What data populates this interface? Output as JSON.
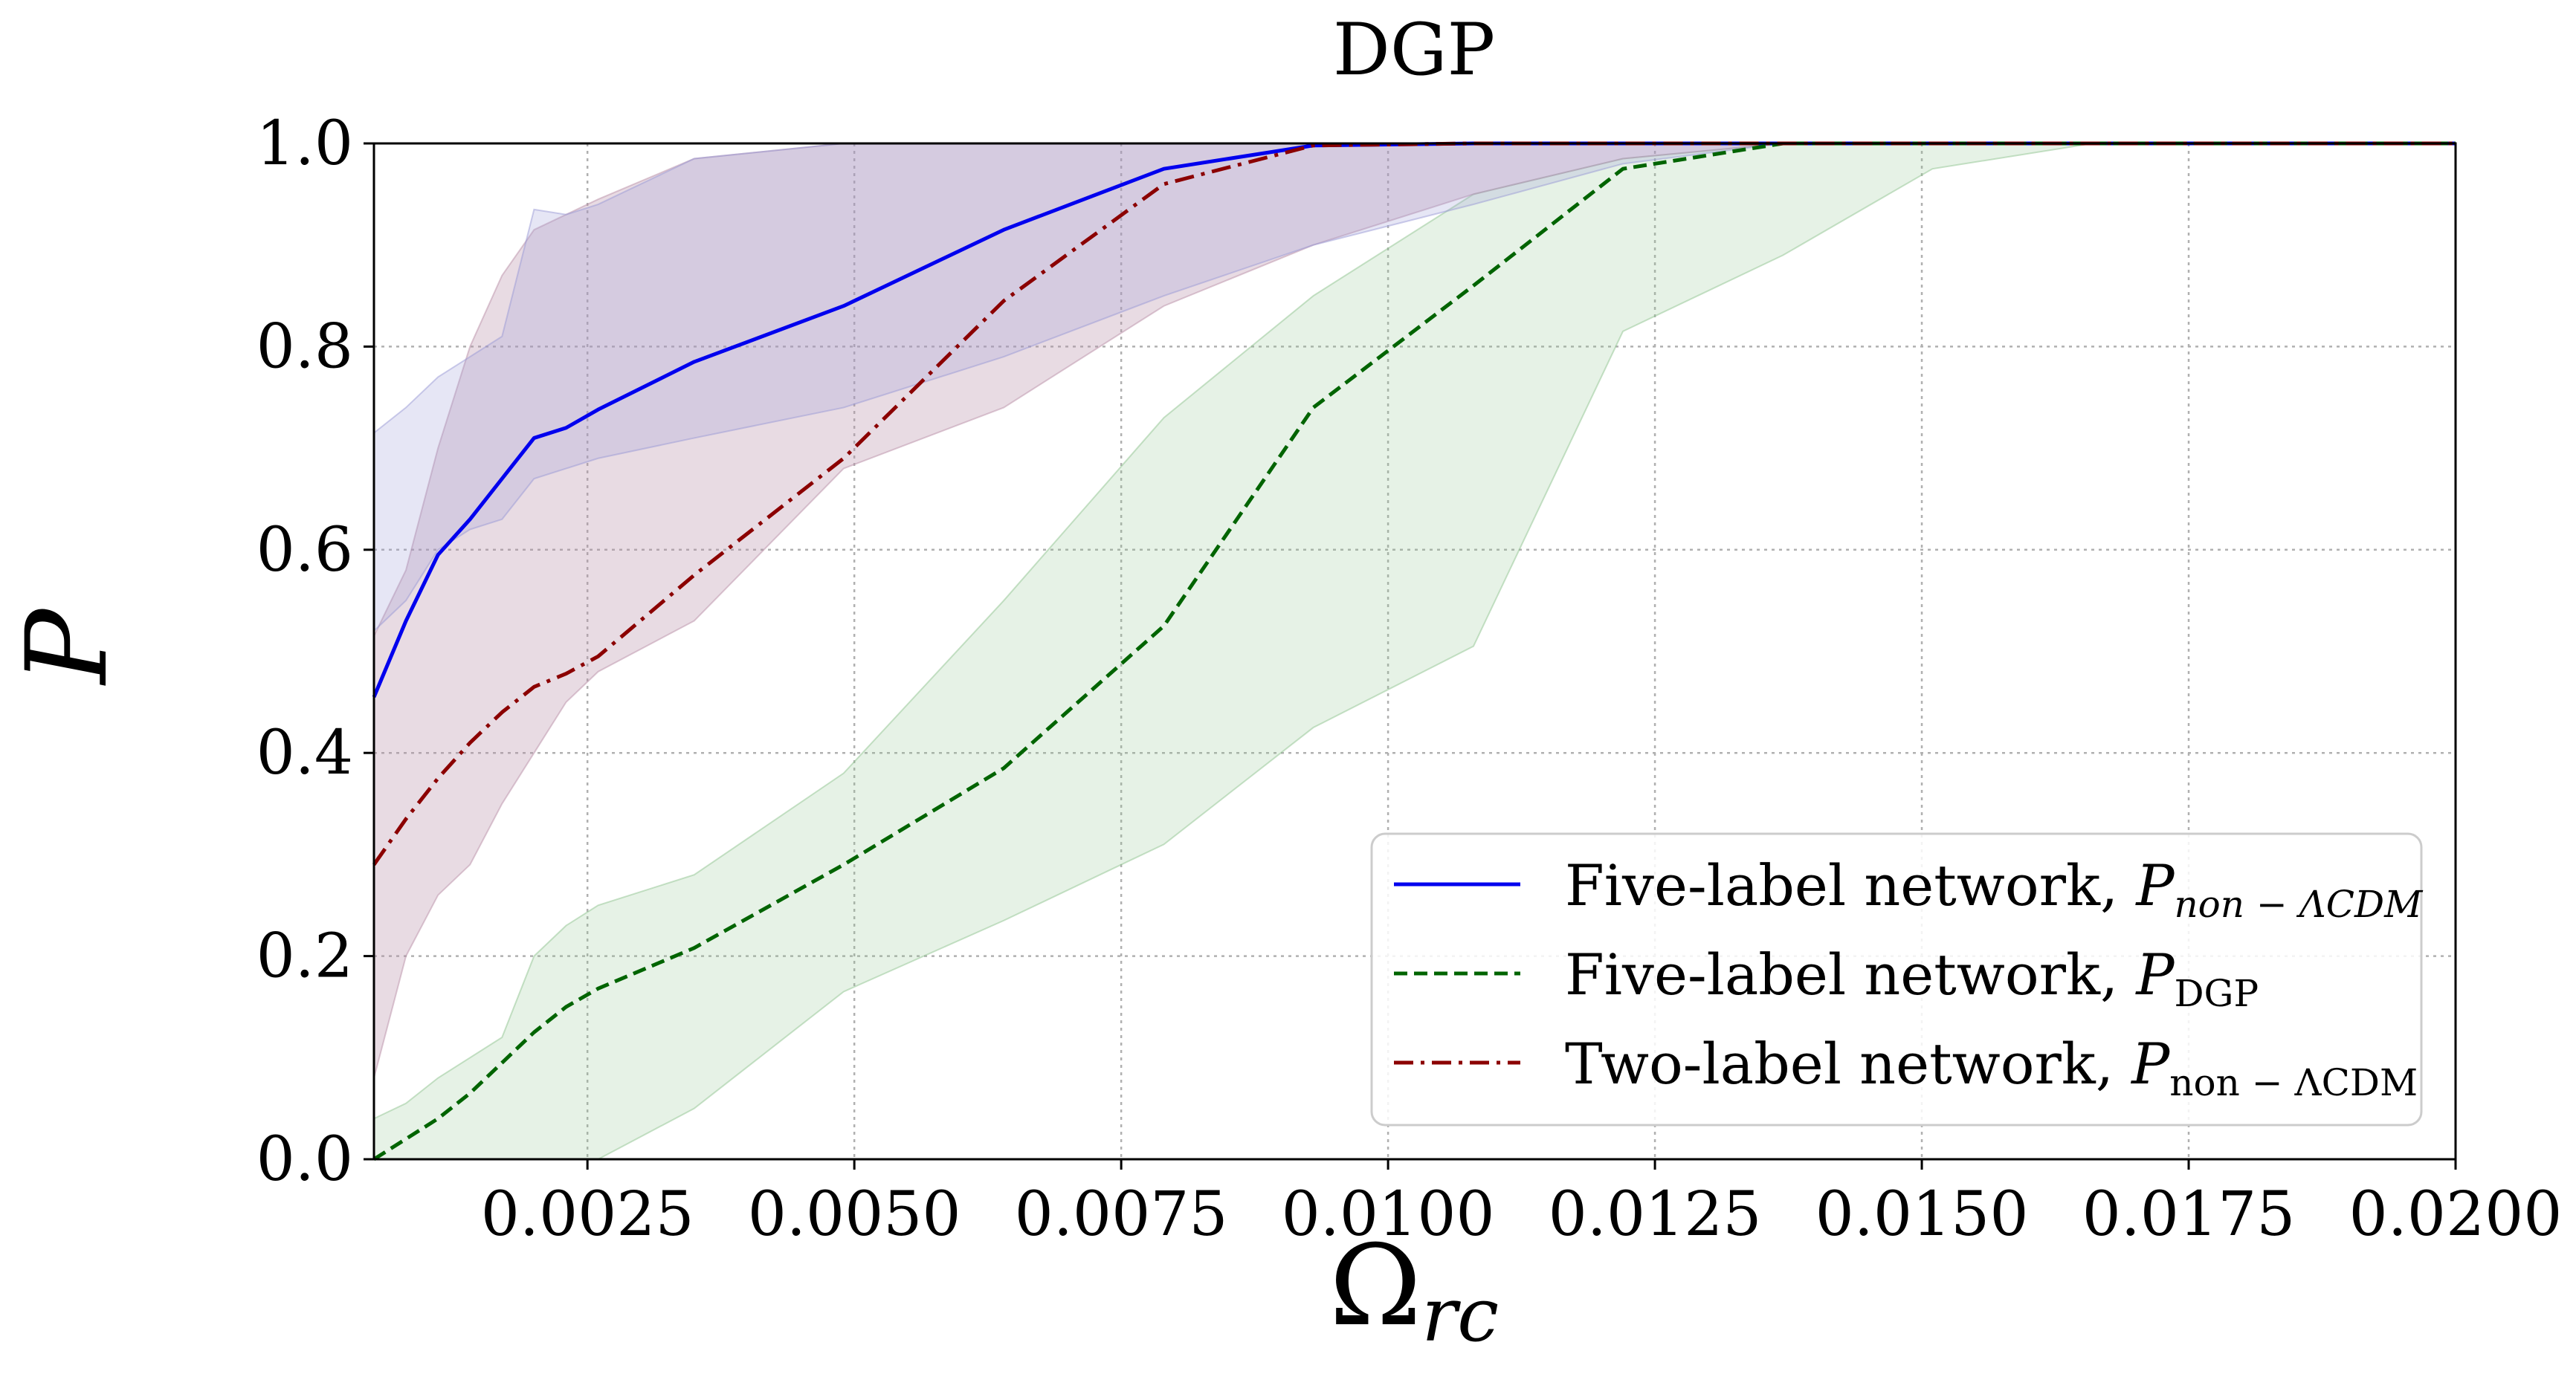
{
  "chart_data": {
    "type": "line",
    "title": "DGP",
    "xlabel": "Ω",
    "xlabel_sub": "rc",
    "ylabel": "P",
    "xlim": [
      0.0005,
      0.02
    ],
    "ylim": [
      0,
      1.0
    ],
    "grid": true,
    "legend_position": "lower-right",
    "x_ticks": [
      0.0025,
      0.005,
      0.0075,
      0.01,
      0.0125,
      0.015,
      0.0175,
      0.02
    ],
    "x_tick_labels": [
      "0.0025",
      "0.0050",
      "0.0075",
      "0.0100",
      "0.0125",
      "0.0150",
      "0.0175",
      "0.0200"
    ],
    "y_ticks": [
      0,
      0.2,
      0.4,
      0.6,
      0.8,
      1.0
    ],
    "y_tick_labels": [
      "0.0",
      "0.2",
      "0.4",
      "0.6",
      "0.8",
      "1.0"
    ],
    "series": [
      {
        "name": "five-label-non-lcdm",
        "legend_prefix": "Five-label network, ",
        "legend_symbol": "P",
        "legend_sub": "non − ΛCDM",
        "legend_sub_italic": true,
        "color": "#0000ee",
        "dash": "solid",
        "band_color": "#9a9ad6",
        "band_opacity": 0.25,
        "x": [
          0.0005,
          0.0008,
          0.0011,
          0.0014,
          0.0017,
          0.002,
          0.0023,
          0.0026,
          0.0035,
          0.0049,
          0.0064,
          0.0079,
          0.0093,
          0.0108,
          0.0122,
          0.0137,
          0.0151,
          0.0166,
          0.018,
          0.02
        ],
        "values": [
          0.455,
          0.53,
          0.595,
          0.63,
          0.67,
          0.71,
          0.72,
          0.738,
          0.785,
          0.84,
          0.915,
          0.975,
          0.998,
          1.0,
          1.0,
          1.0,
          1.0,
          1.0,
          1.0,
          1.0
        ],
        "upper": [
          0.715,
          0.74,
          0.77,
          0.79,
          0.81,
          0.935,
          0.93,
          0.94,
          0.985,
          1.0,
          1.0,
          1.0,
          1.0,
          1.0,
          1.0,
          1.0,
          1.0,
          1.0,
          1.0,
          1.0
        ],
        "lower": [
          0.52,
          0.55,
          0.6,
          0.62,
          0.63,
          0.67,
          0.68,
          0.69,
          0.71,
          0.74,
          0.79,
          0.85,
          0.9,
          0.94,
          0.98,
          1.0,
          1.0,
          1.0,
          1.0,
          1.0
        ]
      },
      {
        "name": "five-label-dgp",
        "legend_prefix": "Five-label network, ",
        "legend_symbol": "P",
        "legend_sub": "DGP",
        "legend_sub_italic": false,
        "color": "#006400",
        "dash": "dashed",
        "band_color": "#8fc48f",
        "band_opacity": 0.22,
        "x": [
          0.0005,
          0.0008,
          0.0011,
          0.0014,
          0.0017,
          0.002,
          0.0023,
          0.0026,
          0.0035,
          0.0049,
          0.0064,
          0.0079,
          0.0093,
          0.0108,
          0.0122,
          0.0137,
          0.0151,
          0.0166,
          0.018,
          0.02
        ],
        "values": [
          0.0,
          0.02,
          0.04,
          0.065,
          0.095,
          0.125,
          0.15,
          0.168,
          0.208,
          0.29,
          0.385,
          0.525,
          0.74,
          0.86,
          0.975,
          1.0,
          1.0,
          1.0,
          1.0,
          1.0
        ],
        "upper": [
          0.04,
          0.055,
          0.08,
          0.1,
          0.12,
          0.2,
          0.23,
          0.25,
          0.28,
          0.38,
          0.55,
          0.73,
          0.85,
          0.95,
          0.985,
          1.0,
          1.0,
          1.0,
          1.0,
          1.0
        ],
        "lower": [
          0.0,
          0.0,
          0.0,
          0.0,
          0.0,
          0.0,
          0.0,
          0.0,
          0.05,
          0.165,
          0.235,
          0.31,
          0.425,
          0.505,
          0.815,
          0.89,
          0.975,
          1.0,
          1.0,
          1.0
        ]
      },
      {
        "name": "two-label-non-lcdm",
        "legend_prefix": "Two-label network, ",
        "legend_symbol": "P",
        "legend_sub": "non − ΛCDM",
        "legend_sub_italic": false,
        "color": "#8b0000",
        "dash": "dashdot",
        "band_color": "#b98fa8",
        "band_opacity": 0.32,
        "x": [
          0.0005,
          0.0008,
          0.0011,
          0.0014,
          0.0017,
          0.002,
          0.0023,
          0.0026,
          0.0035,
          0.0049,
          0.0064,
          0.0079,
          0.0093,
          0.0108,
          0.0122,
          0.0137,
          0.0151,
          0.0166,
          0.018,
          0.02
        ],
        "values": [
          0.29,
          0.335,
          0.375,
          0.41,
          0.44,
          0.465,
          0.478,
          0.495,
          0.575,
          0.69,
          0.845,
          0.96,
          0.998,
          1.0,
          1.0,
          1.0,
          1.0,
          1.0,
          1.0,
          1.0
        ],
        "upper": [
          0.515,
          0.58,
          0.7,
          0.8,
          0.87,
          0.915,
          0.93,
          0.945,
          0.985,
          1.0,
          1.0,
          1.0,
          1.0,
          1.0,
          1.0,
          1.0,
          1.0,
          1.0,
          1.0,
          1.0
        ],
        "lower": [
          0.08,
          0.2,
          0.26,
          0.29,
          0.35,
          0.4,
          0.45,
          0.48,
          0.53,
          0.68,
          0.74,
          0.84,
          0.9,
          0.95,
          0.985,
          1.0,
          1.0,
          1.0,
          1.0,
          1.0
        ]
      }
    ]
  }
}
